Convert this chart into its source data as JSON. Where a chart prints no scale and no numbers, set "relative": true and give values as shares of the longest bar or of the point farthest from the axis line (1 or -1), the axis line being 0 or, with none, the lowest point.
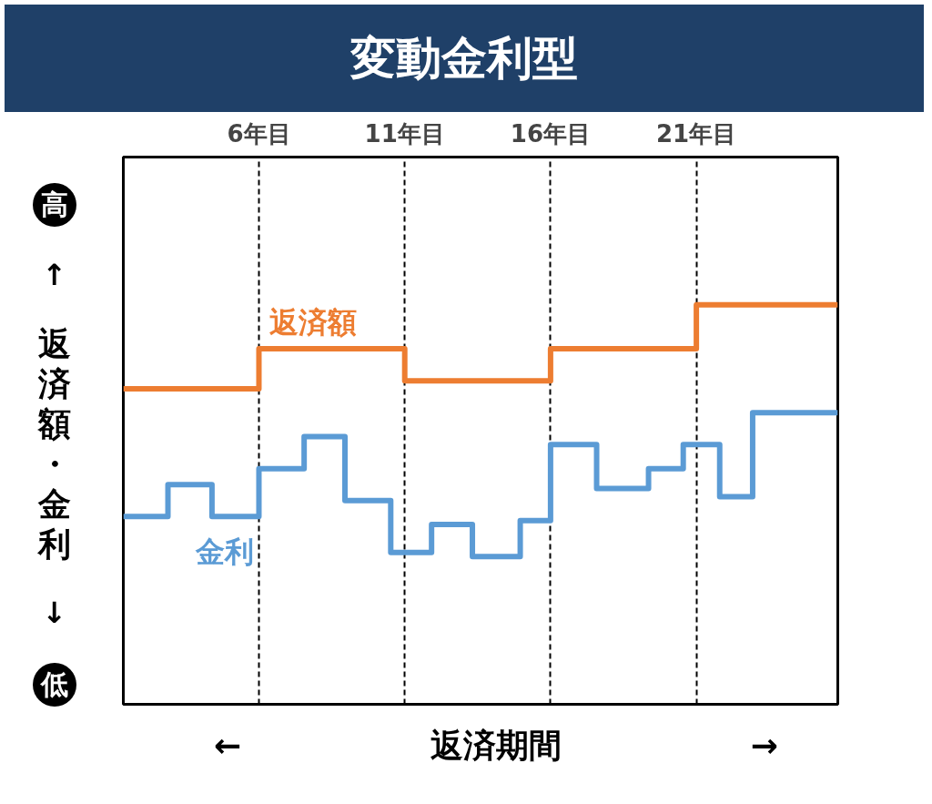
{
  "chart_data": {
    "type": "step",
    "title": "変動金利型",
    "xlabel": "返済期間",
    "ylabel": "返済額・金利",
    "relative": true,
    "xlim": [
      1.35,
      25.85
    ],
    "xticks": [
      {
        "value": 6,
        "label": "6年目"
      },
      {
        "value": 11,
        "label": "11年目"
      },
      {
        "value": 16,
        "label": "16年目"
      },
      {
        "value": 21,
        "label": "21年目"
      }
    ],
    "grid": "x",
    "line_style": "solid",
    "annotations": [
      "高",
      "低",
      "↑",
      "↓",
      "←",
      "→"
    ],
    "series": [
      {
        "name": "返済額",
        "color": "#ed7d31",
        "x": [
          1.35,
          6,
          11,
          16,
          21,
          25.85
        ],
        "values": [
          0.79,
          0.89,
          0.81,
          0.89,
          1.0,
          1.0
        ]
      },
      {
        "name": "金利",
        "color": "#5b9bd5",
        "x": [
          1.35,
          2.88,
          4.39,
          6,
          7.55,
          8.95,
          10.52,
          11.92,
          13.32,
          14.96,
          16,
          17.58,
          19.36,
          20.55,
          21.8,
          22.93,
          25.85
        ],
        "values": [
          0.47,
          0.55,
          0.47,
          0.59,
          0.67,
          0.51,
          0.38,
          0.45,
          0.37,
          0.46,
          0.65,
          0.54,
          0.59,
          0.65,
          0.52,
          0.73,
          0.73
        ]
      }
    ]
  }
}
